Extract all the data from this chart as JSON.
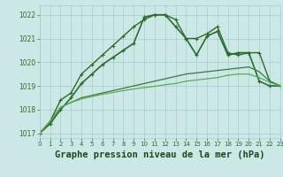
{
  "x": [
    0,
    1,
    2,
    3,
    4,
    5,
    6,
    7,
    8,
    9,
    10,
    11,
    12,
    13,
    14,
    15,
    16,
    17,
    18,
    19,
    20,
    21,
    22,
    23
  ],
  "series": [
    {
      "y": [
        1017.0,
        1017.4,
        1018.0,
        1018.5,
        1019.1,
        1019.5,
        1019.9,
        1020.2,
        1020.5,
        1020.8,
        1021.9,
        1022.0,
        1022.0,
        1021.5,
        1021.0,
        1020.3,
        1021.1,
        1021.3,
        1020.3,
        1020.4,
        1020.4,
        1019.2,
        1019.0,
        1019.0
      ],
      "color": "#2d6a2d",
      "lw": 1.2,
      "marker": "+"
    },
    {
      "y": [
        1017.0,
        1017.5,
        1018.4,
        1018.7,
        1019.5,
        1019.9,
        1020.3,
        1020.7,
        1021.1,
        1021.5,
        1021.8,
        1022.0,
        1022.0,
        1021.8,
        1021.0,
        1021.0,
        1021.2,
        1021.5,
        1020.4,
        1020.3,
        1020.4,
        1020.4,
        1019.2,
        1019.0
      ],
      "color": "#2d6a2d",
      "lw": 1.0,
      "marker": "+"
    },
    {
      "y": [
        1017.0,
        1017.5,
        1018.1,
        1018.3,
        1018.5,
        1018.6,
        1018.7,
        1018.8,
        1018.9,
        1019.0,
        1019.1,
        1019.2,
        1019.3,
        1019.4,
        1019.5,
        1019.55,
        1019.6,
        1019.65,
        1019.7,
        1019.75,
        1019.8,
        1019.6,
        1019.2,
        1019.0
      ],
      "color": "#3a7a3a",
      "lw": 0.9,
      "marker": null
    },
    {
      "y": [
        1017.0,
        1017.5,
        1018.1,
        1018.3,
        1018.45,
        1018.55,
        1018.65,
        1018.72,
        1018.8,
        1018.87,
        1018.93,
        1018.98,
        1019.05,
        1019.1,
        1019.2,
        1019.25,
        1019.3,
        1019.35,
        1019.45,
        1019.5,
        1019.5,
        1019.35,
        1019.15,
        1019.0
      ],
      "color": "#5aaa5a",
      "lw": 0.9,
      "marker": null
    }
  ],
  "xlim": [
    0,
    23
  ],
  "ylim": [
    1016.8,
    1022.4
  ],
  "yticks": [
    1017,
    1018,
    1019,
    1020,
    1021,
    1022
  ],
  "xticks": [
    0,
    1,
    2,
    3,
    4,
    5,
    6,
    7,
    8,
    9,
    10,
    11,
    12,
    13,
    14,
    15,
    16,
    17,
    18,
    19,
    20,
    21,
    22,
    23
  ],
  "xlabel": "Graphe pression niveau de la mer (hPa)",
  "bg_color": "#cce8e6",
  "grid_color": "#a8cccb",
  "tick_color": "#2d6a2d",
  "label_color": "#1a4a1a"
}
